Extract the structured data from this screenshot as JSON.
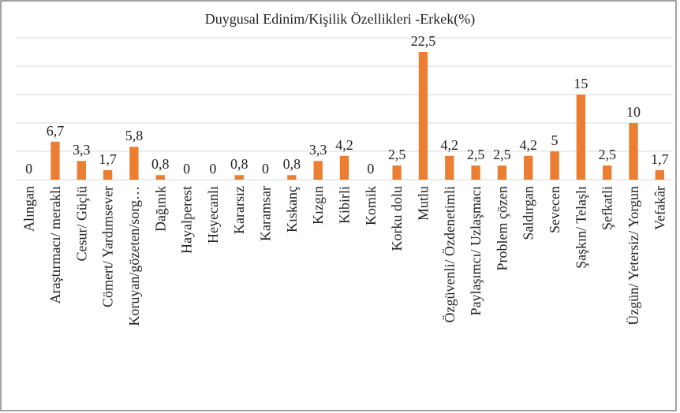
{
  "chart_data": {
    "type": "bar",
    "title": "Duygusal Edinim/Kişilik Özellikleri -Erkek(%)",
    "categories": [
      "Alıngan",
      "Araştırmacı/ meraklı",
      "Cesur/ Güçlü",
      "Cömert/ Yardımsever",
      "Koruyan/gözeten/sorg…",
      "Dağınık",
      "Hayalperest",
      "Heyecanlı",
      "Kararsız",
      "Karamsar",
      "Kıskanç",
      "Kızgın",
      "Kibirli",
      "Komik",
      "Korku dolu",
      "Mutlu",
      "Özgüvenli/ Özdenetimli",
      "Paylaşımcı/ Uzlaşmacı",
      "Problem çözen",
      "Saldırgan",
      "Sevecen",
      "Şaşkın/ Telaşlı",
      "Şefkatli",
      "Üzgün/ Yetersiz/ Yorgun",
      "Vefakâr"
    ],
    "values": [
      0,
      6.7,
      3.3,
      1.7,
      5.8,
      0.8,
      0,
      0,
      0.8,
      0,
      0.8,
      3.3,
      4.2,
      0,
      2.5,
      22.5,
      4.2,
      2.5,
      2.5,
      4.2,
      5,
      15,
      2.5,
      10,
      1.7
    ],
    "value_labels": [
      "0",
      "6,7",
      "3,3",
      "1,7",
      "5,8",
      "0,8",
      "0",
      "0",
      "0,8",
      "0",
      "0,8",
      "3,3",
      "4,2",
      "0",
      "2,5",
      "22,5",
      "4,2",
      "2,5",
      "2,5",
      "4,2",
      "5",
      "15",
      "2,5",
      "10",
      "1,7"
    ],
    "color": "#ed7d31",
    "ylim": [
      0,
      25
    ],
    "yticks": [
      0,
      5,
      10,
      15,
      20,
      25
    ],
    "ytick_labels": false,
    "grid": true
  }
}
